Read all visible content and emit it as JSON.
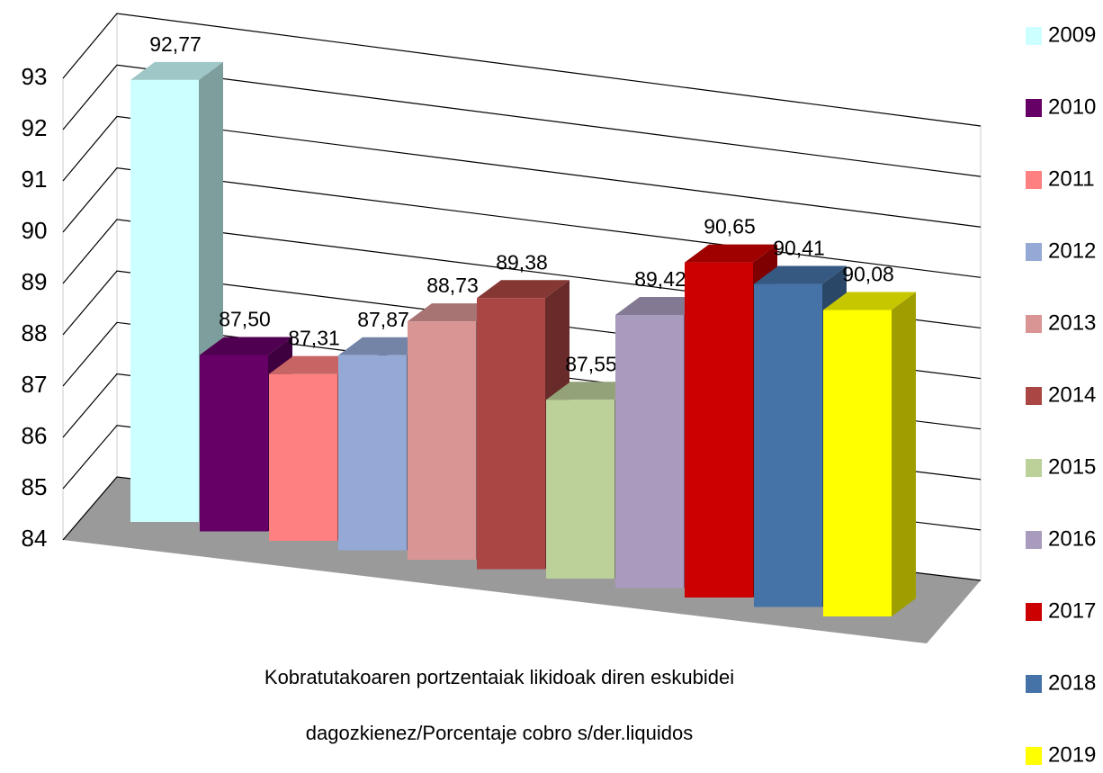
{
  "chart_data": {
    "type": "bar3d",
    "x_label": "Kobratutakoaren portzentaiak likidoak diren eskubidei dagozkienez/Porcentaje cobro s/der.liquidos",
    "categories": [
      "2009",
      "2010",
      "2011",
      "2012",
      "2013",
      "2014",
      "2015",
      "2016",
      "2017",
      "2018",
      "2019"
    ],
    "values": [
      92.77,
      87.5,
      87.31,
      87.87,
      88.73,
      89.38,
      87.55,
      89.42,
      90.65,
      90.41,
      90.08
    ],
    "value_labels": [
      "92,77",
      "87,50",
      "87,31",
      "87,87",
      "88,73",
      "89,38",
      "87,55",
      "89,42",
      "90,65",
      "90,41",
      "90,08"
    ],
    "colors": [
      "#ccffff",
      "#660066",
      "#ff8080",
      "#95a9d6",
      "#d89594",
      "#aa4643",
      "#bcd09a",
      "#a99bbd",
      "#cc0000",
      "#4572a7",
      "#ffff00"
    ],
    "ylim": [
      84,
      93
    ],
    "yticks": [
      84,
      85,
      86,
      87,
      88,
      89,
      90,
      91,
      92,
      93
    ],
    "grid": true,
    "legend": "right"
  }
}
